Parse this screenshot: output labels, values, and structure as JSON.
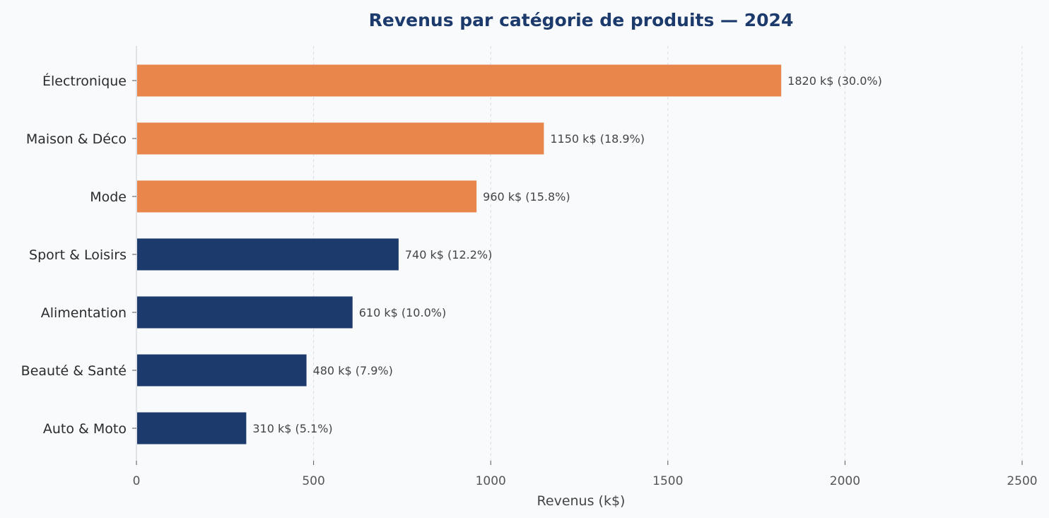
{
  "chart_data": {
    "type": "bar",
    "orientation": "horizontal",
    "title": "Revenus par catégorie de produits — 2024",
    "xlabel": "Revenus (k$)",
    "ylabel": "",
    "xlim": [
      0,
      2500
    ],
    "xticks": [
      0,
      500,
      1000,
      1500,
      2000,
      2500
    ],
    "xtick_labels": [
      "0",
      "500",
      "1000",
      "1500",
      "2000",
      "2500"
    ],
    "grid": "vertical dashed",
    "categories": [
      "Électronique",
      "Maison & Déco",
      "Mode",
      "Sport & Loisirs",
      "Alimentation",
      "Beauté & Santé",
      "Auto & Moto"
    ],
    "values": [
      1820,
      1150,
      960,
      740,
      610,
      480,
      310
    ],
    "data_labels": [
      "1820 k$  (30.0%)",
      "1150 k$  (18.9%)",
      "960 k$  (15.8%)",
      "740 k$  (12.2%)",
      "610 k$  (10.0%)",
      "480 k$  (7.9%)",
      "310 k$  (5.1%)"
    ],
    "highlighted_top": 3,
    "colors": {
      "highlight": "#e8864b",
      "default": "#1c3a6b",
      "title": "#1c3a6b",
      "grid": "#d9dde3",
      "background": "#f8fafc"
    }
  }
}
